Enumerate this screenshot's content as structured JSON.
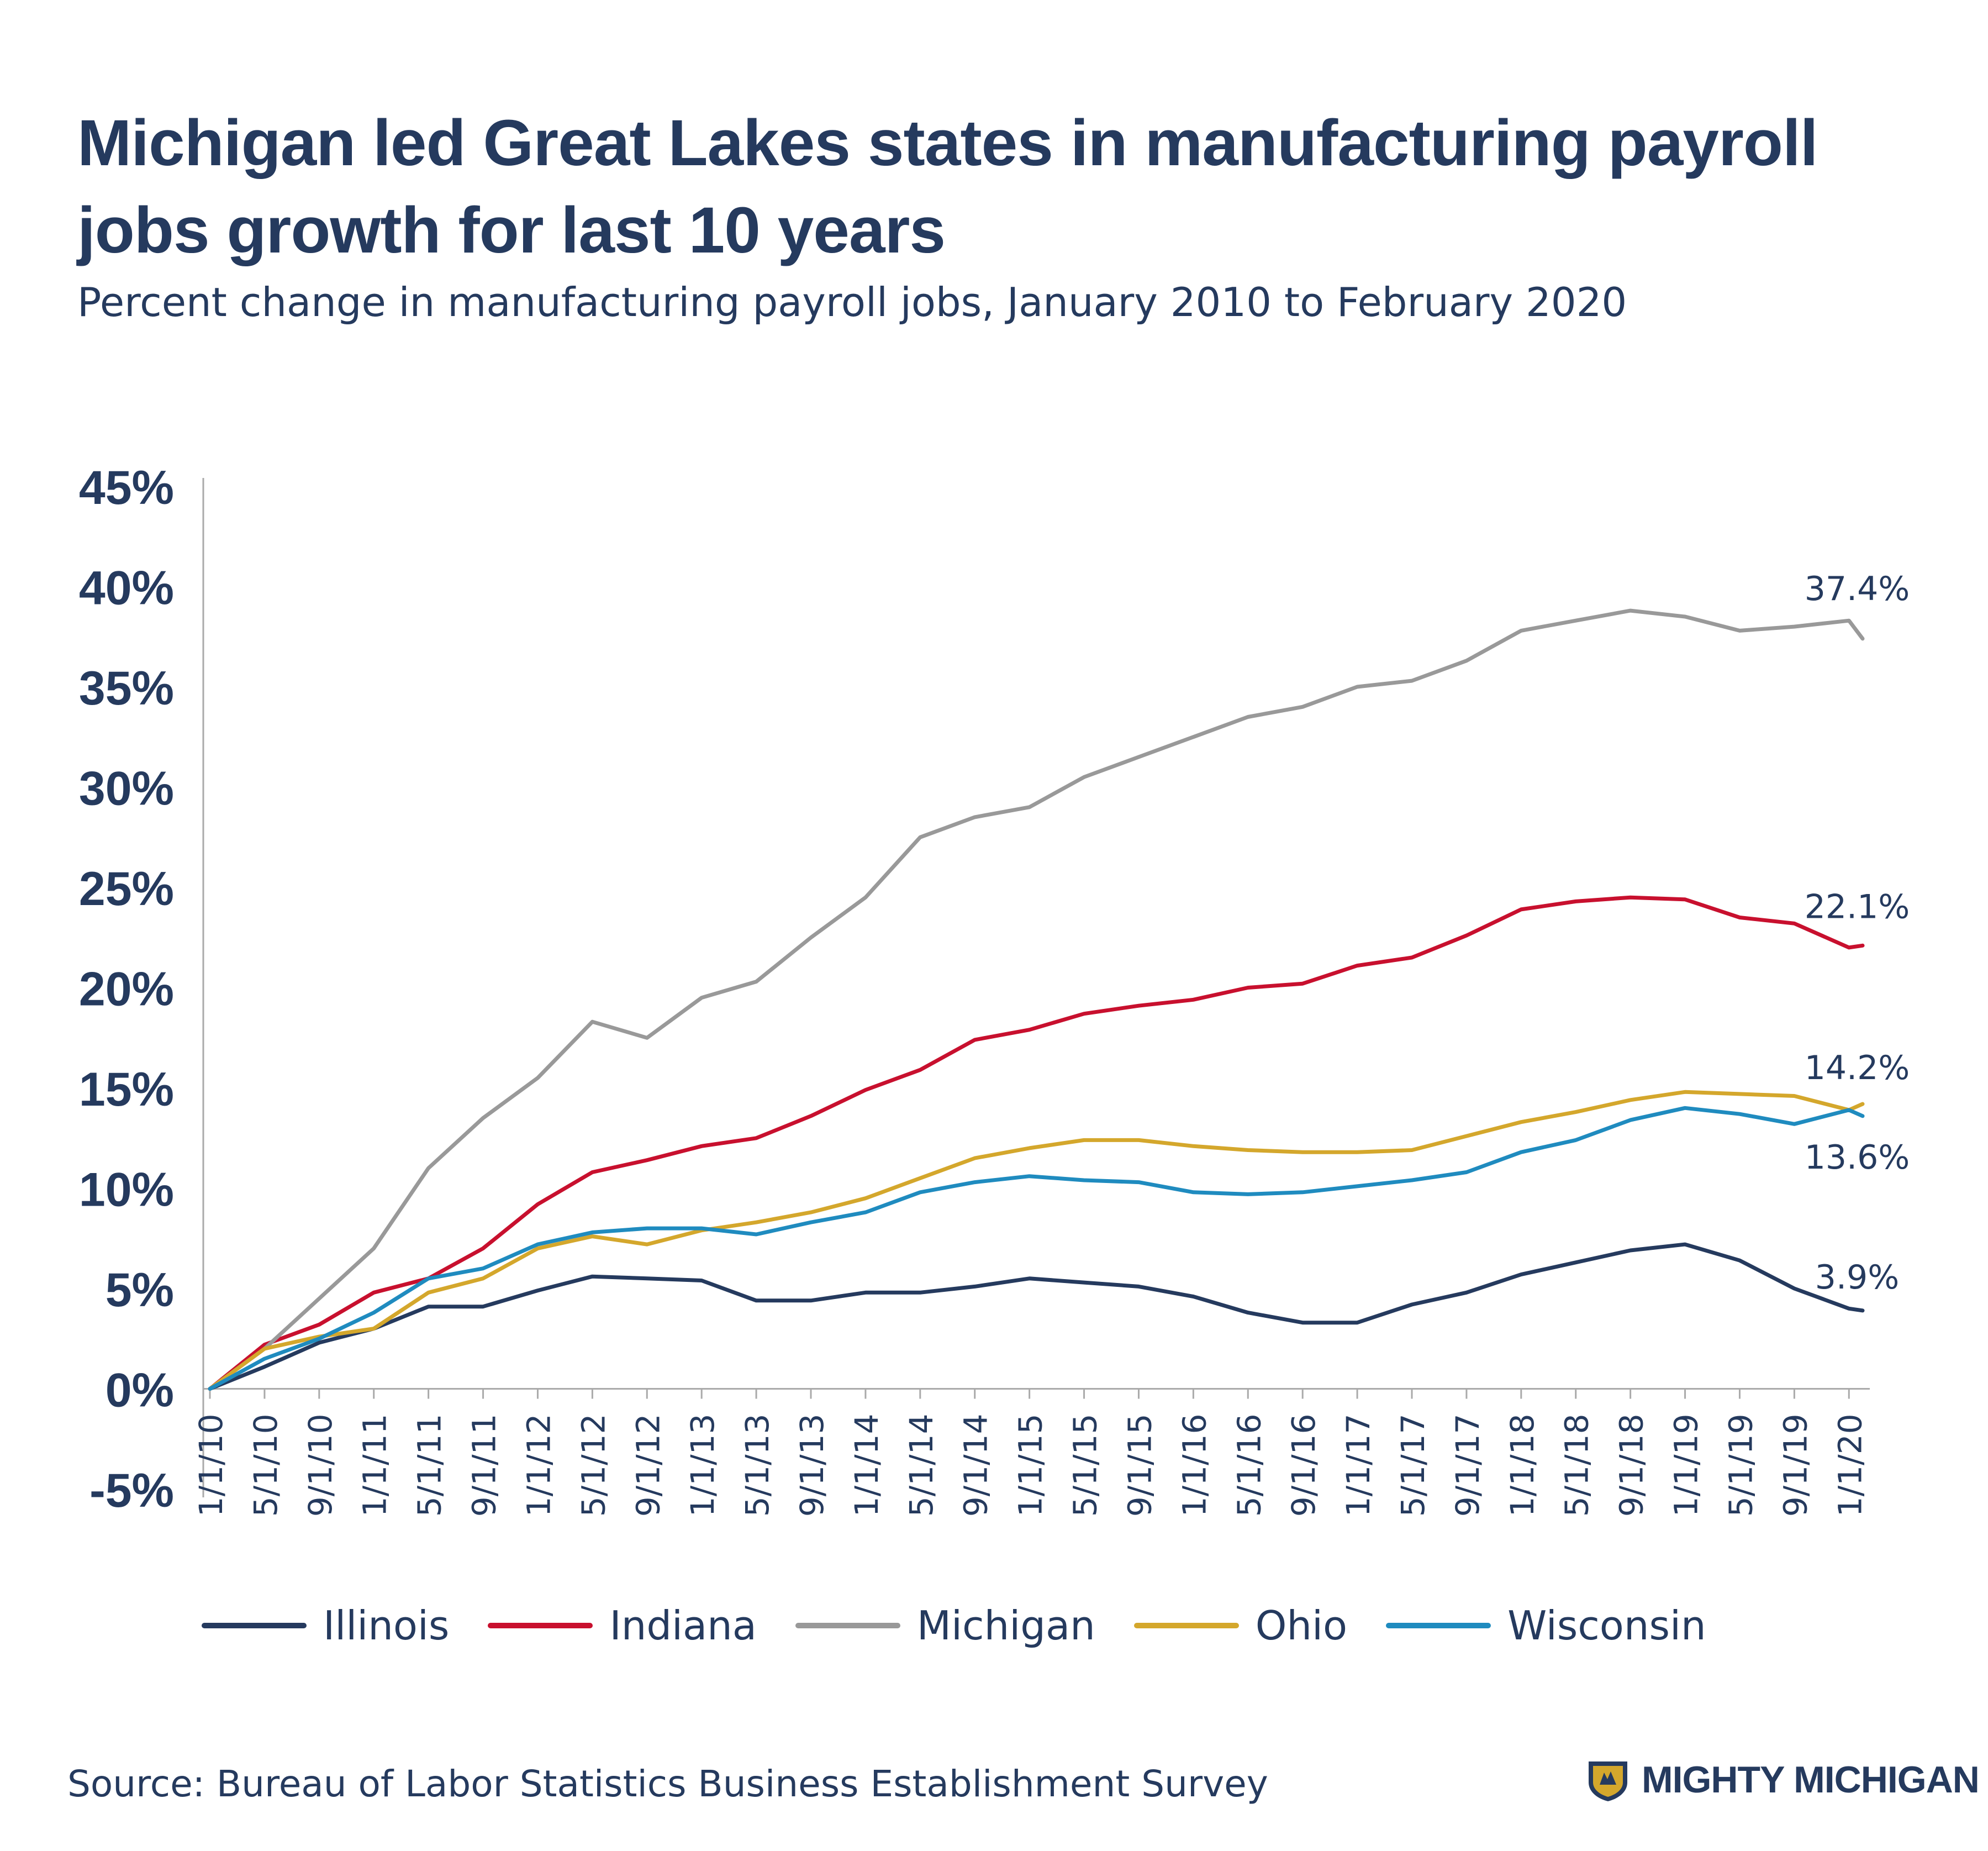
{
  "header": {
    "title": "Michigan led Great Lakes states in manufacturing payroll jobs growth for last 10 years",
    "subtitle": "Percent change in manufacturing payroll jobs, January 2010 to February 2020"
  },
  "footer": {
    "source": "Source: Bureau of Labor Statistics Business Establishment Survey",
    "brand": "MIGHTY MICHIGAN"
  },
  "chart_data": {
    "type": "line",
    "title": "Michigan led Great Lakes states in manufacturing payroll jobs growth for last 10 years",
    "subtitle": "Percent change in manufacturing payroll jobs, January 2010 to February 2020",
    "ylim": [
      -5,
      45
    ],
    "yticks": [
      -5,
      0,
      5,
      10,
      15,
      20,
      25,
      30,
      35,
      40,
      45
    ],
    "ytick_labels": [
      "-5%",
      "0%",
      "5%",
      "10%",
      "15%",
      "20%",
      "25%",
      "30%",
      "35%",
      "40%",
      "45%"
    ],
    "x_tick_labels": [
      "1/1/10",
      "5/1/10",
      "9/1/10",
      "1/1/11",
      "5/1/11",
      "9/1/11",
      "1/1/12",
      "5/1/12",
      "9/1/12",
      "1/1/13",
      "5/1/13",
      "9/1/13",
      "1/1/14",
      "5/1/14",
      "9/1/14",
      "1/1/15",
      "5/1/15",
      "9/1/15",
      "1/1/16",
      "5/1/16",
      "9/1/16",
      "1/1/17",
      "5/1/17",
      "9/1/17",
      "1/1/18",
      "5/1/18",
      "9/1/18",
      "1/1/19",
      "5/1/19",
      "9/1/19",
      "1/1/20"
    ],
    "grid": false,
    "legend_position": "bottom",
    "series": [
      {
        "name": "Illinois",
        "color": "#253a5e",
        "end_label": "3.9%",
        "x": [
          "1/1/10",
          "5/1/10",
          "9/1/10",
          "1/1/11",
          "5/1/11",
          "9/1/11",
          "1/1/12",
          "5/1/12",
          "9/1/12",
          "1/1/13",
          "5/1/13",
          "9/1/13",
          "1/1/14",
          "5/1/14",
          "9/1/14",
          "1/1/15",
          "5/1/15",
          "9/1/15",
          "1/1/16",
          "5/1/16",
          "9/1/16",
          "1/1/17",
          "5/1/17",
          "9/1/17",
          "1/1/18",
          "5/1/18",
          "9/1/18",
          "1/1/19",
          "5/1/19",
          "9/1/19",
          "1/1/20",
          "2/1/20"
        ],
        "values": [
          0,
          1.1,
          2.3,
          3.0,
          4.1,
          4.1,
          4.9,
          5.6,
          5.5,
          5.4,
          4.4,
          4.4,
          4.8,
          4.8,
          5.1,
          5.5,
          5.3,
          5.1,
          4.6,
          3.8,
          3.3,
          3.3,
          4.2,
          4.8,
          5.7,
          6.3,
          6.9,
          7.2,
          6.4,
          5.0,
          4.0,
          3.9
        ]
      },
      {
        "name": "Indiana",
        "color": "#c8102e",
        "end_label": "22.1%",
        "x": [
          "1/1/10",
          "5/1/10",
          "9/1/10",
          "1/1/11",
          "5/1/11",
          "9/1/11",
          "1/1/12",
          "5/1/12",
          "9/1/12",
          "1/1/13",
          "5/1/13",
          "9/1/13",
          "1/1/14",
          "5/1/14",
          "9/1/14",
          "1/1/15",
          "5/1/15",
          "9/1/15",
          "1/1/16",
          "5/1/16",
          "9/1/16",
          "1/1/17",
          "5/1/17",
          "9/1/17",
          "1/1/18",
          "5/1/18",
          "9/1/18",
          "1/1/19",
          "5/1/19",
          "9/1/19",
          "1/1/20",
          "2/1/20"
        ],
        "values": [
          0,
          2.2,
          3.2,
          4.8,
          5.5,
          7.0,
          9.2,
          10.8,
          11.4,
          12.1,
          12.5,
          13.6,
          14.9,
          15.9,
          17.4,
          17.9,
          18.7,
          19.1,
          19.4,
          20.0,
          20.2,
          21.1,
          21.5,
          22.6,
          23.9,
          24.3,
          24.5,
          24.4,
          23.5,
          23.2,
          22.0,
          22.1
        ]
      },
      {
        "name": "Michigan",
        "color": "#999999",
        "end_label": "37.4%",
        "x": [
          "1/1/10",
          "5/1/10",
          "9/1/10",
          "1/1/11",
          "5/1/11",
          "9/1/11",
          "1/1/12",
          "5/1/12",
          "9/1/12",
          "1/1/13",
          "5/1/13",
          "9/1/13",
          "1/1/14",
          "5/1/14",
          "9/1/14",
          "1/1/15",
          "5/1/15",
          "9/1/15",
          "1/1/16",
          "5/1/16",
          "9/1/16",
          "1/1/17",
          "5/1/17",
          "9/1/17",
          "1/1/18",
          "5/1/18",
          "9/1/18",
          "1/1/19",
          "5/1/19",
          "9/1/19",
          "1/1/20",
          "2/1/20"
        ],
        "values": [
          0,
          2.0,
          4.5,
          7.0,
          11.0,
          13.5,
          15.5,
          18.3,
          17.5,
          19.5,
          20.3,
          22.5,
          24.5,
          27.5,
          28.5,
          29.0,
          30.5,
          31.5,
          32.5,
          33.5,
          34.0,
          35.0,
          35.3,
          36.3,
          37.8,
          38.3,
          38.8,
          38.5,
          37.8,
          38.0,
          38.3,
          37.4
        ]
      },
      {
        "name": "Ohio",
        "color": "#d4a72c",
        "end_label": "14.2%",
        "x": [
          "1/1/10",
          "5/1/10",
          "9/1/10",
          "1/1/11",
          "5/1/11",
          "9/1/11",
          "1/1/12",
          "5/1/12",
          "9/1/12",
          "1/1/13",
          "5/1/13",
          "9/1/13",
          "1/1/14",
          "5/1/14",
          "9/1/14",
          "1/1/15",
          "5/1/15",
          "9/1/15",
          "1/1/16",
          "5/1/16",
          "9/1/16",
          "1/1/17",
          "5/1/17",
          "9/1/17",
          "1/1/18",
          "5/1/18",
          "9/1/18",
          "1/1/19",
          "5/1/19",
          "9/1/19",
          "1/1/20",
          "2/1/20"
        ],
        "values": [
          0,
          2.0,
          2.6,
          3.0,
          4.8,
          5.5,
          7.0,
          7.6,
          7.2,
          7.9,
          8.3,
          8.8,
          9.5,
          10.5,
          11.5,
          12.0,
          12.4,
          12.4,
          12.1,
          11.9,
          11.8,
          11.8,
          11.9,
          12.6,
          13.3,
          13.8,
          14.4,
          14.8,
          14.7,
          14.6,
          13.9,
          14.2
        ]
      },
      {
        "name": "Wisconsin",
        "color": "#1f8bbf",
        "end_label": "13.6%",
        "x": [
          "1/1/10",
          "5/1/10",
          "9/1/10",
          "1/1/11",
          "5/1/11",
          "9/1/11",
          "1/1/12",
          "5/1/12",
          "9/1/12",
          "1/1/13",
          "5/1/13",
          "9/1/13",
          "1/1/14",
          "5/1/14",
          "9/1/14",
          "1/1/15",
          "5/1/15",
          "9/1/15",
          "1/1/16",
          "5/1/16",
          "9/1/16",
          "1/1/17",
          "5/1/17",
          "9/1/17",
          "1/1/18",
          "5/1/18",
          "9/1/18",
          "1/1/19",
          "5/1/19",
          "9/1/19",
          "1/1/20",
          "2/1/20"
        ],
        "values": [
          0,
          1.5,
          2.5,
          3.8,
          5.5,
          6.0,
          7.2,
          7.8,
          8.0,
          8.0,
          7.7,
          8.3,
          8.8,
          9.8,
          10.3,
          10.6,
          10.4,
          10.3,
          9.8,
          9.7,
          9.8,
          10.1,
          10.4,
          10.8,
          11.8,
          12.4,
          13.4,
          14.0,
          13.7,
          13.2,
          13.9,
          13.6
        ]
      }
    ]
  }
}
